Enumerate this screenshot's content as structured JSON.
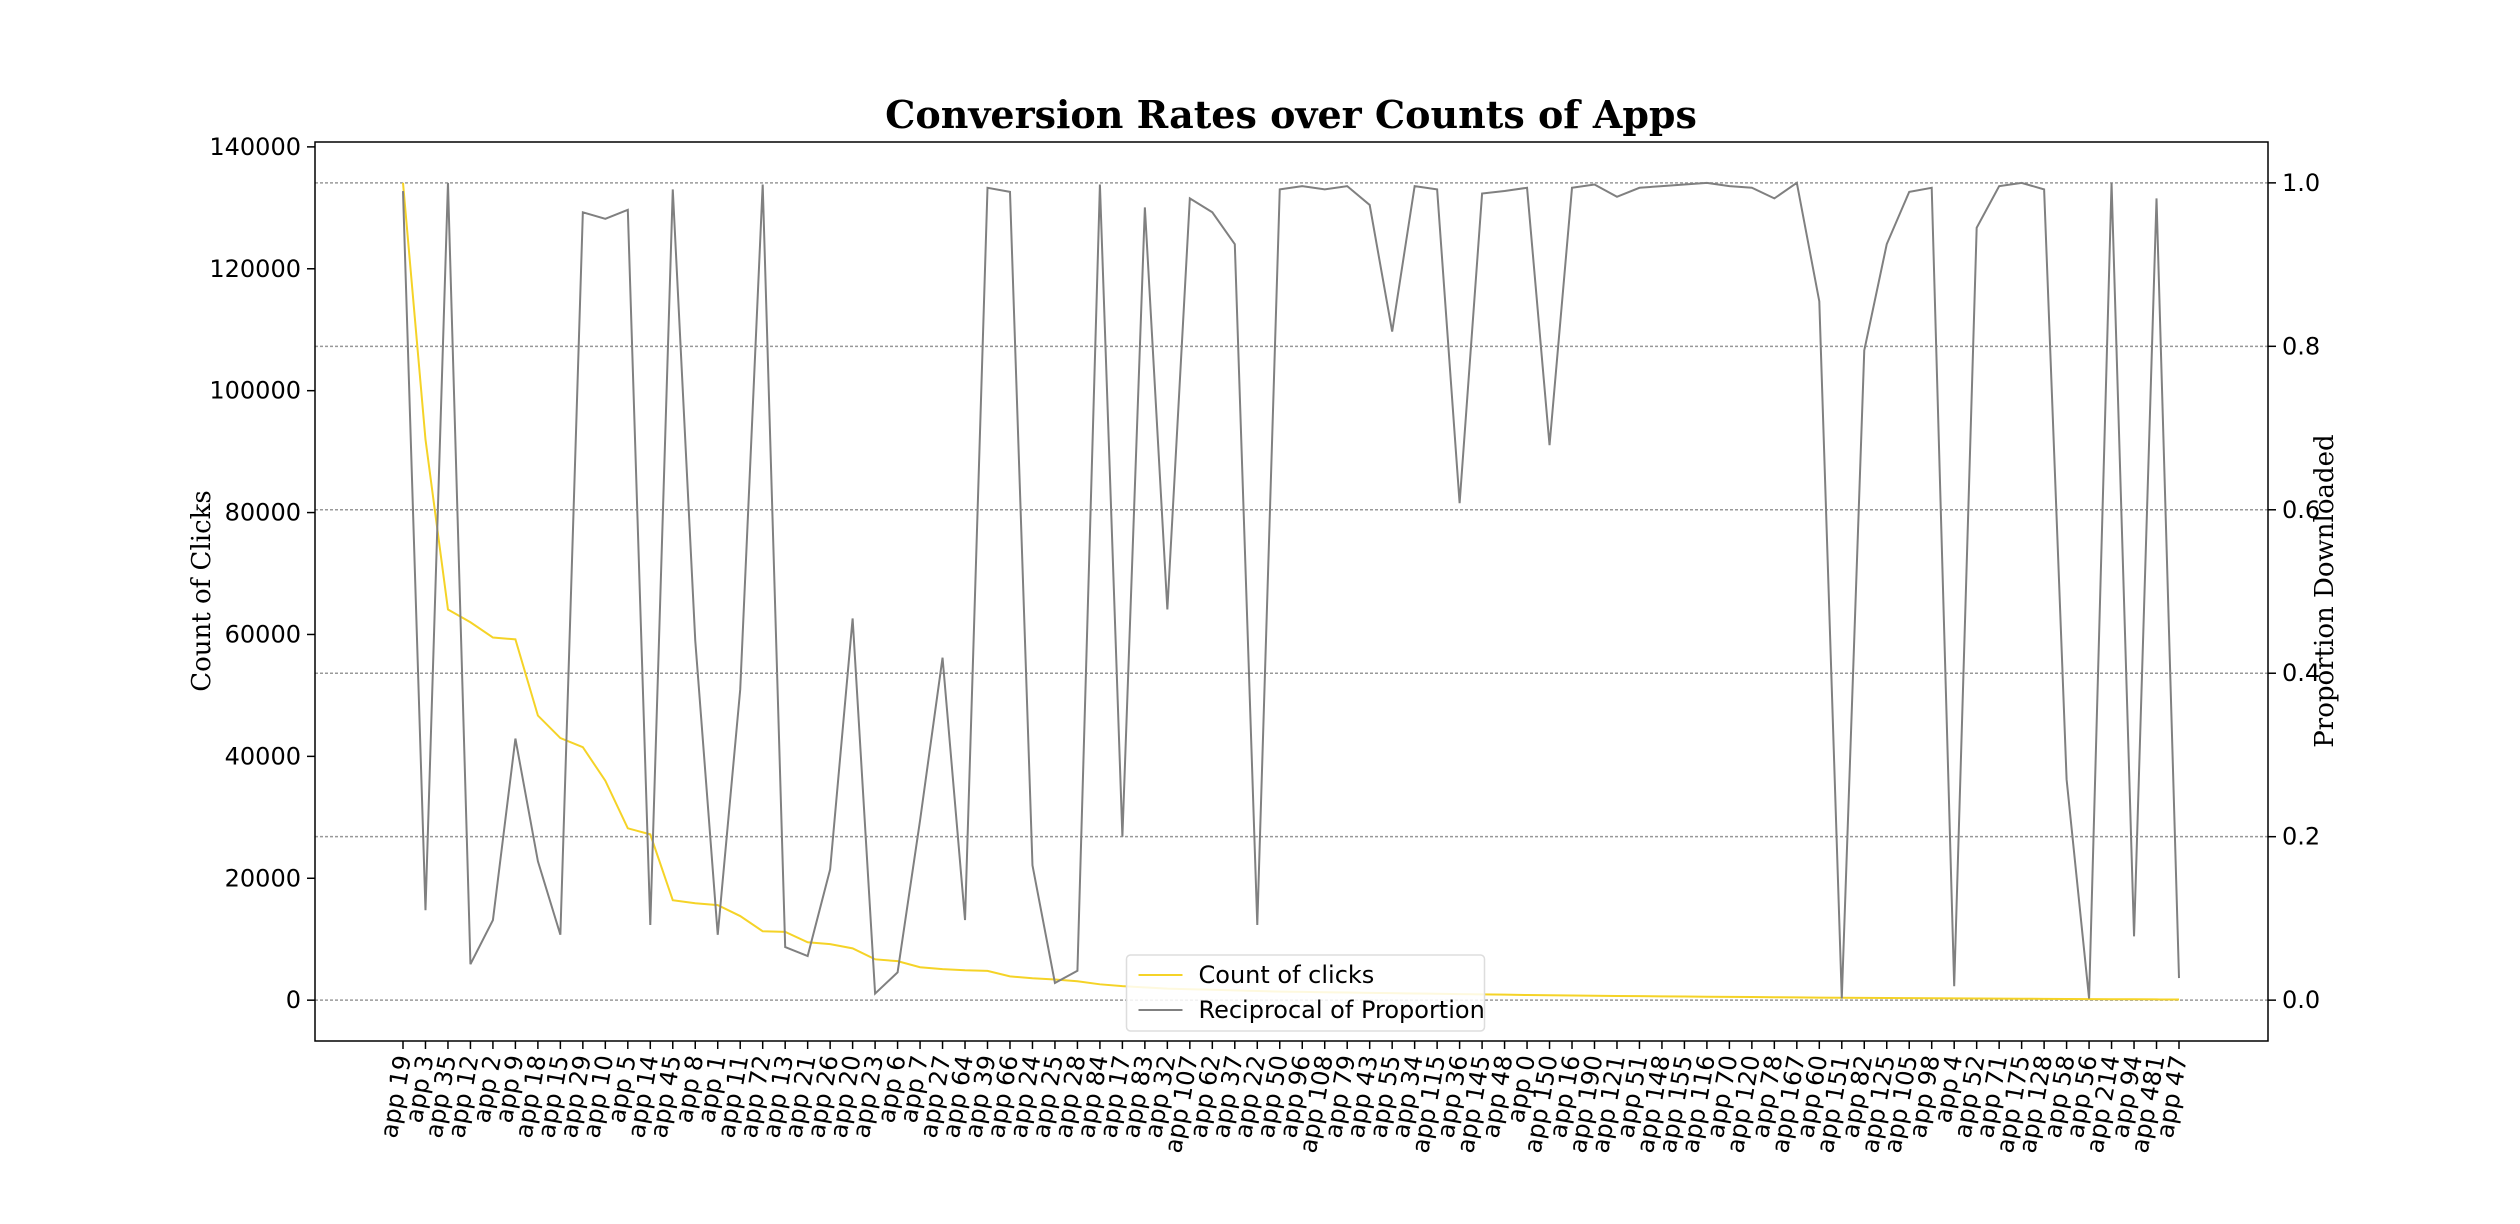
{
  "chart_data": {
    "type": "line",
    "title": "Conversion Rates over Counts of Apps",
    "ylabel": "Count of Clicks",
    "y2label": "Proportion Downloaded",
    "categories": [
      "app 19",
      "app 3",
      "app 35",
      "app 12",
      "app 2",
      "app 9",
      "app 18",
      "app 15",
      "app 29",
      "app 10",
      "app 5",
      "app 14",
      "app 45",
      "app 8",
      "app 1",
      "app 11",
      "app 72",
      "app 13",
      "app 21",
      "app 26",
      "app 20",
      "app 23",
      "app 6",
      "app 7",
      "app 27",
      "app 64",
      "app 39",
      "app 66",
      "app 24",
      "app 25",
      "app 28",
      "app 84",
      "app 17",
      "app 83",
      "app 32",
      "app 107",
      "app 62",
      "app 37",
      "app 22",
      "app 50",
      "app 96",
      "app 108",
      "app 79",
      "app 43",
      "app 55",
      "app 34",
      "app 115",
      "app 36",
      "app 145",
      "app 48",
      "app 0",
      "app 150",
      "app 16",
      "app 190",
      "app 121",
      "app 51",
      "app 148",
      "app 155",
      "app 116",
      "app 70",
      "app 120",
      "app 78",
      "app 167",
      "app 60",
      "app 151",
      "app 82",
      "app 125",
      "app 105",
      "app 98",
      "app 4",
      "app 52",
      "app 71",
      "app 175",
      "app 128",
      "app 58",
      "app 56",
      "app 214",
      "app 94",
      "app 481",
      "app 47"
    ],
    "series": [
      {
        "name": "Count of clicks",
        "color": "#f5d327",
        "axis": "y",
        "values": [
          134100,
          92000,
          64100,
          62000,
          59500,
          59200,
          46700,
          43000,
          41500,
          36000,
          28200,
          27200,
          16400,
          15900,
          15600,
          13800,
          11300,
          11200,
          9500,
          9200,
          8500,
          6700,
          6400,
          5400,
          5100,
          4900,
          4800,
          3900,
          3600,
          3400,
          3100,
          2600,
          2300,
          2100,
          1900,
          1800,
          1700,
          1600,
          1500,
          1400,
          1350,
          1300,
          1250,
          1200,
          1150,
          1100,
          1050,
          1000,
          950,
          900,
          850,
          800,
          760,
          720,
          690,
          660,
          630,
          600,
          570,
          540,
          510,
          480,
          450,
          420,
          400,
          380,
          360,
          340,
          320,
          300,
          280,
          260,
          240,
          220,
          200,
          180,
          160,
          140,
          120,
          100
        ]
      },
      {
        "name": "Reciprocal of Proportion",
        "color": "#808080",
        "axis": "y2",
        "values": [
          0.99,
          0.11,
          1.0,
          0.044,
          0.098,
          0.32,
          0.17,
          0.08,
          0.964,
          0.956,
          0.967,
          0.092,
          0.992,
          0.44,
          0.08,
          0.38,
          0.998,
          0.065,
          0.054,
          0.16,
          0.467,
          0.008,
          0.034,
          0.22,
          0.419,
          0.098,
          0.994,
          0.989,
          0.165,
          0.021,
          0.036,
          0.998,
          0.2,
          0.97,
          0.478,
          0.981,
          0.964,
          0.925,
          0.092,
          0.992,
          0.996,
          0.992,
          0.996,
          0.973,
          0.818,
          0.996,
          0.992,
          0.608,
          0.987,
          0.99,
          0.994,
          0.679,
          0.994,
          0.998,
          0.983,
          0.994,
          0.996,
          0.998,
          1.0,
          0.996,
          0.994,
          0.981,
          1.0,
          0.855,
          0.002,
          0.795,
          0.925,
          0.989,
          0.994,
          0.017,
          0.945,
          0.996,
          1.0,
          0.992,
          0.27,
          0.002,
          1.0,
          0.078,
          0.981,
          0.027
        ]
      }
    ],
    "ylim": [
      -6700,
      140800
    ],
    "yticks": [
      0,
      20000,
      40000,
      60000,
      80000,
      100000,
      120000,
      140000
    ],
    "y2lim": [
      -0.05,
      1.05
    ],
    "y2ticks": [
      {
        "value": 0,
        "label": "0.0"
      },
      0.2,
      0.4,
      0.6,
      0.8,
      {
        "value": 1,
        "label": "1.0"
      }
    ],
    "grid": "y2",
    "legend": "lower center"
  }
}
